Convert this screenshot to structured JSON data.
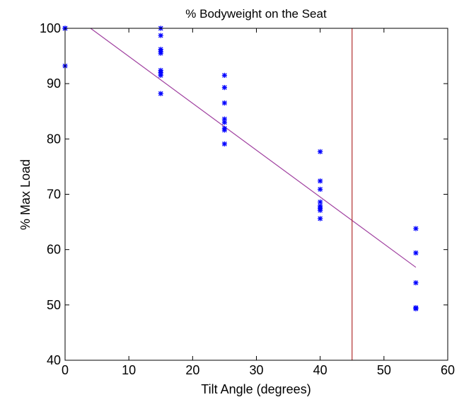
{
  "chart_data": {
    "type": "scatter",
    "title": "% Bodyweight on the Seat",
    "xlabel": "Tilt Angle (degrees)",
    "ylabel": "% Max Load",
    "xlim": [
      0,
      60
    ],
    "ylim": [
      40,
      100
    ],
    "x_ticks": [
      0,
      10,
      20,
      30,
      40,
      50,
      60
    ],
    "y_ticks": [
      40,
      50,
      60,
      70,
      80,
      90,
      100
    ],
    "grid": false,
    "legend": "none",
    "series": [
      {
        "marker": "*",
        "color": "#0000ff",
        "points": [
          [
            0,
            100
          ],
          [
            0,
            100
          ],
          [
            0,
            93.2
          ],
          [
            15,
            100
          ],
          [
            15,
            98.7
          ],
          [
            15,
            96.2
          ],
          [
            15,
            95.8
          ],
          [
            15,
            95.5
          ],
          [
            15,
            92.4
          ],
          [
            15,
            92.0
          ],
          [
            15,
            91.5
          ],
          [
            15,
            88.2
          ],
          [
            25,
            91.5
          ],
          [
            25,
            89.3
          ],
          [
            25,
            86.5
          ],
          [
            25,
            83.6
          ],
          [
            25,
            83.0
          ],
          [
            25,
            81.9
          ],
          [
            25,
            81.6
          ],
          [
            25,
            79.1
          ],
          [
            40,
            77.7
          ],
          [
            40,
            72.4
          ],
          [
            40,
            70.9
          ],
          [
            40,
            68.6
          ],
          [
            40,
            67.9
          ],
          [
            40,
            67.5
          ],
          [
            40,
            67.1
          ],
          [
            40,
            65.6
          ],
          [
            55,
            63.8
          ],
          [
            55,
            59.4
          ],
          [
            55,
            54.0
          ],
          [
            55,
            49.5
          ],
          [
            55,
            49.3
          ]
        ]
      }
    ],
    "fit_line": {
      "color": "#a040a0",
      "x": [
        4,
        55
      ],
      "y": [
        100,
        56.8
      ]
    },
    "vertical_line": {
      "color": "#b03030",
      "x": 45
    }
  }
}
